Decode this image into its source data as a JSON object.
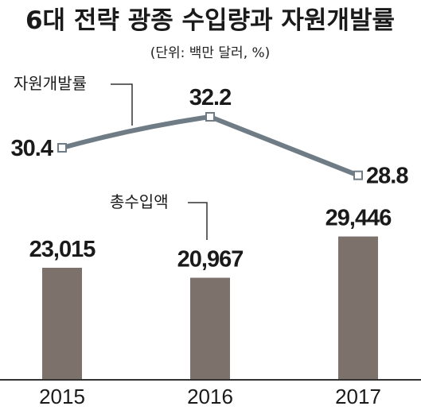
{
  "chart_data": {
    "type": "bar+line",
    "title": "6대 전략 광종 수입량과 자원개발률",
    "unit_note": "(단위: 백만 달러, %)",
    "categories": [
      "2015",
      "2016",
      "2017"
    ],
    "series": [
      {
        "name": "총수입액",
        "kind": "bar",
        "values": [
          23015,
          20967,
          29446
        ],
        "labels": [
          "23,015",
          "20,967",
          "29,446"
        ],
        "ylim": [
          0,
          35000
        ]
      },
      {
        "name": "자원개발률",
        "kind": "line",
        "values": [
          30.4,
          32.2,
          28.8
        ],
        "labels": [
          "30.4",
          "32.2",
          "28.8"
        ],
        "ylim": [
          26,
          34
        ]
      }
    ],
    "colors": {
      "bar": "#7d716b",
      "line": "#6f7c85",
      "marker_fill": "#ffffff",
      "axis": "#333333"
    }
  }
}
